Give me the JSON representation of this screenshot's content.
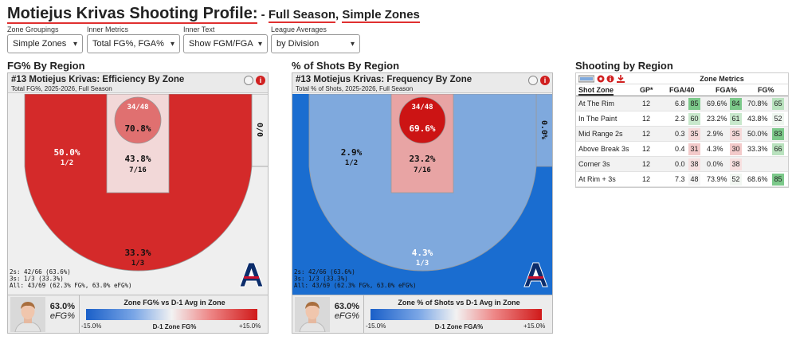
{
  "header": {
    "title": "Motiejus Krivas Shooting Profile:",
    "sub_prefix": " - ",
    "sub_period": "Full Season",
    "sub_sep": ", ",
    "sub_zones": "Simple Zones"
  },
  "controls": [
    {
      "label": "Zone Groupings",
      "value": "Simple Zones"
    },
    {
      "label": "Inner Metrics",
      "value": "Total FG%, FGA%"
    },
    {
      "label": "Inner Text",
      "value": "Show FGM/FGA"
    },
    {
      "label": "League Averages",
      "value": "by Division"
    }
  ],
  "sections": {
    "left": "FG% By Region",
    "middle": "% of Shots By Region",
    "right": "Shooting by Region"
  },
  "panels": [
    {
      "title": "#13 Motiejus Krivas: Efficiency By Zone",
      "subtitle": "Total FG%, 2025-2026, Full Season",
      "zones": {
        "rim": {
          "pct": "70.8%",
          "frac": "34/48",
          "color": "#e07070"
        },
        "paint": {
          "pct": "43.8%",
          "frac": "7/16",
          "color": "#f2d8d8"
        },
        "mid": {
          "pct": "50.0%",
          "frac": "1/2",
          "color": "#d42a2a"
        },
        "corner": {
          "pct": "0/0",
          "frac": "",
          "color": "#eeeeee"
        },
        "three": {
          "pct": "33.3%",
          "frac": "1/3",
          "color": "#efefef"
        }
      },
      "stats": [
        "2s: 42/66 (63.6%)",
        "3s: 1/3 (33.3%)",
        "All: 43/69 (62.3% FG%, 63.0% eFG%)"
      ],
      "efg_value": "63.0%",
      "efg_label": "eFG%",
      "legend_title": "Zone FG% vs D-1 Avg in Zone",
      "legend_min": "-15.0%",
      "legend_max": "+15.0%",
      "legend_mid": "D-1 Zone FG%"
    },
    {
      "title": "#13 Motiejus Krivas: Frequency By Zone",
      "subtitle": "Total % of Shots, 2025-2026, Full Season",
      "zones": {
        "rim": {
          "pct": "69.6%",
          "frac": "34/48",
          "color": "#cc1414"
        },
        "paint": {
          "pct": "23.2%",
          "frac": "7/16",
          "color": "#e8a4a4"
        },
        "mid": {
          "pct": "2.9%",
          "frac": "1/2",
          "color": "#7fa9dd"
        },
        "corner": {
          "pct": "0.0%",
          "frac": "",
          "color": "#7fa9dd"
        },
        "three": {
          "pct": "4.3%",
          "frac": "1/3",
          "color": "#1a6dd0"
        }
      },
      "stats": [
        "2s: 42/66 (63.6%)",
        "3s: 1/3 (33.3%)",
        "All: 43/69 (62.3% FG%, 63.0% eFG%)"
      ],
      "efg_value": "63.0%",
      "efg_label": "eFG%",
      "legend_title": "Zone % of Shots vs D-1 Avg in Zone",
      "legend_min": "-15.0%",
      "legend_max": "+15.0%",
      "legend_mid": "D-1 Zone FGA%"
    }
  ],
  "table": {
    "group_header": "Zone Metrics",
    "columns": [
      "Shot Zone",
      "GP*",
      "FGA/40",
      "FGA%",
      "FG%"
    ],
    "rows": [
      {
        "zone": "At The Rim",
        "gp": "12",
        "fga40": "6.8",
        "fga40_rk": "85",
        "fga40_c": "#7cc98a",
        "fgap": "69.6%",
        "fgap_rk": "84",
        "fgap_c": "#7cc98a",
        "fg": "70.8%",
        "fg_rk": "65",
        "fg_c": "#b9e2be"
      },
      {
        "zone": "In The Paint",
        "gp": "12",
        "fga40": "2.3",
        "fga40_rk": "60",
        "fga40_c": "#c8e8cc",
        "fgap": "23.2%",
        "fgap_rk": "61",
        "fgap_c": "#c8e8cc",
        "fg": "43.8%",
        "fg_rk": "52",
        "fg_c": "#eef6ef"
      },
      {
        "zone": "Mid Range 2s",
        "gp": "12",
        "fga40": "0.3",
        "fga40_rk": "35",
        "fga40_c": "#f6d9d9",
        "fgap": "2.9%",
        "fgap_rk": "35",
        "fgap_c": "#f6d9d9",
        "fg": "50.0%",
        "fg_rk": "83",
        "fg_c": "#7cc98a"
      },
      {
        "zone": "Above Break 3s",
        "gp": "12",
        "fga40": "0.4",
        "fga40_rk": "31",
        "fga40_c": "#f3caca",
        "fgap": "4.3%",
        "fgap_rk": "30",
        "fgap_c": "#f3caca",
        "fg": "33.3%",
        "fg_rk": "66",
        "fg_c": "#b9e2be"
      },
      {
        "zone": "Corner 3s",
        "gp": "12",
        "fga40": "0.0",
        "fga40_rk": "38",
        "fga40_c": "#f7e0e0",
        "fgap": "0.0%",
        "fgap_rk": "38",
        "fgap_c": "#f7e0e0",
        "fg": "",
        "fg_rk": "",
        "fg_c": "transparent"
      },
      {
        "zone": "At Rim + 3s",
        "gp": "12",
        "fga40": "7.3",
        "fga40_rk": "48",
        "fga40_c": "#f5f5f5",
        "fgap": "73.9%",
        "fgap_rk": "52",
        "fgap_c": "#f2f7f2",
        "fg": "68.6%",
        "fg_rk": "85",
        "fg_c": "#7cc98a"
      }
    ]
  },
  "icons": [
    "palette-icon",
    "settings-icon",
    "info-icon",
    "download-icon",
    "player-photo",
    "team-logo"
  ]
}
